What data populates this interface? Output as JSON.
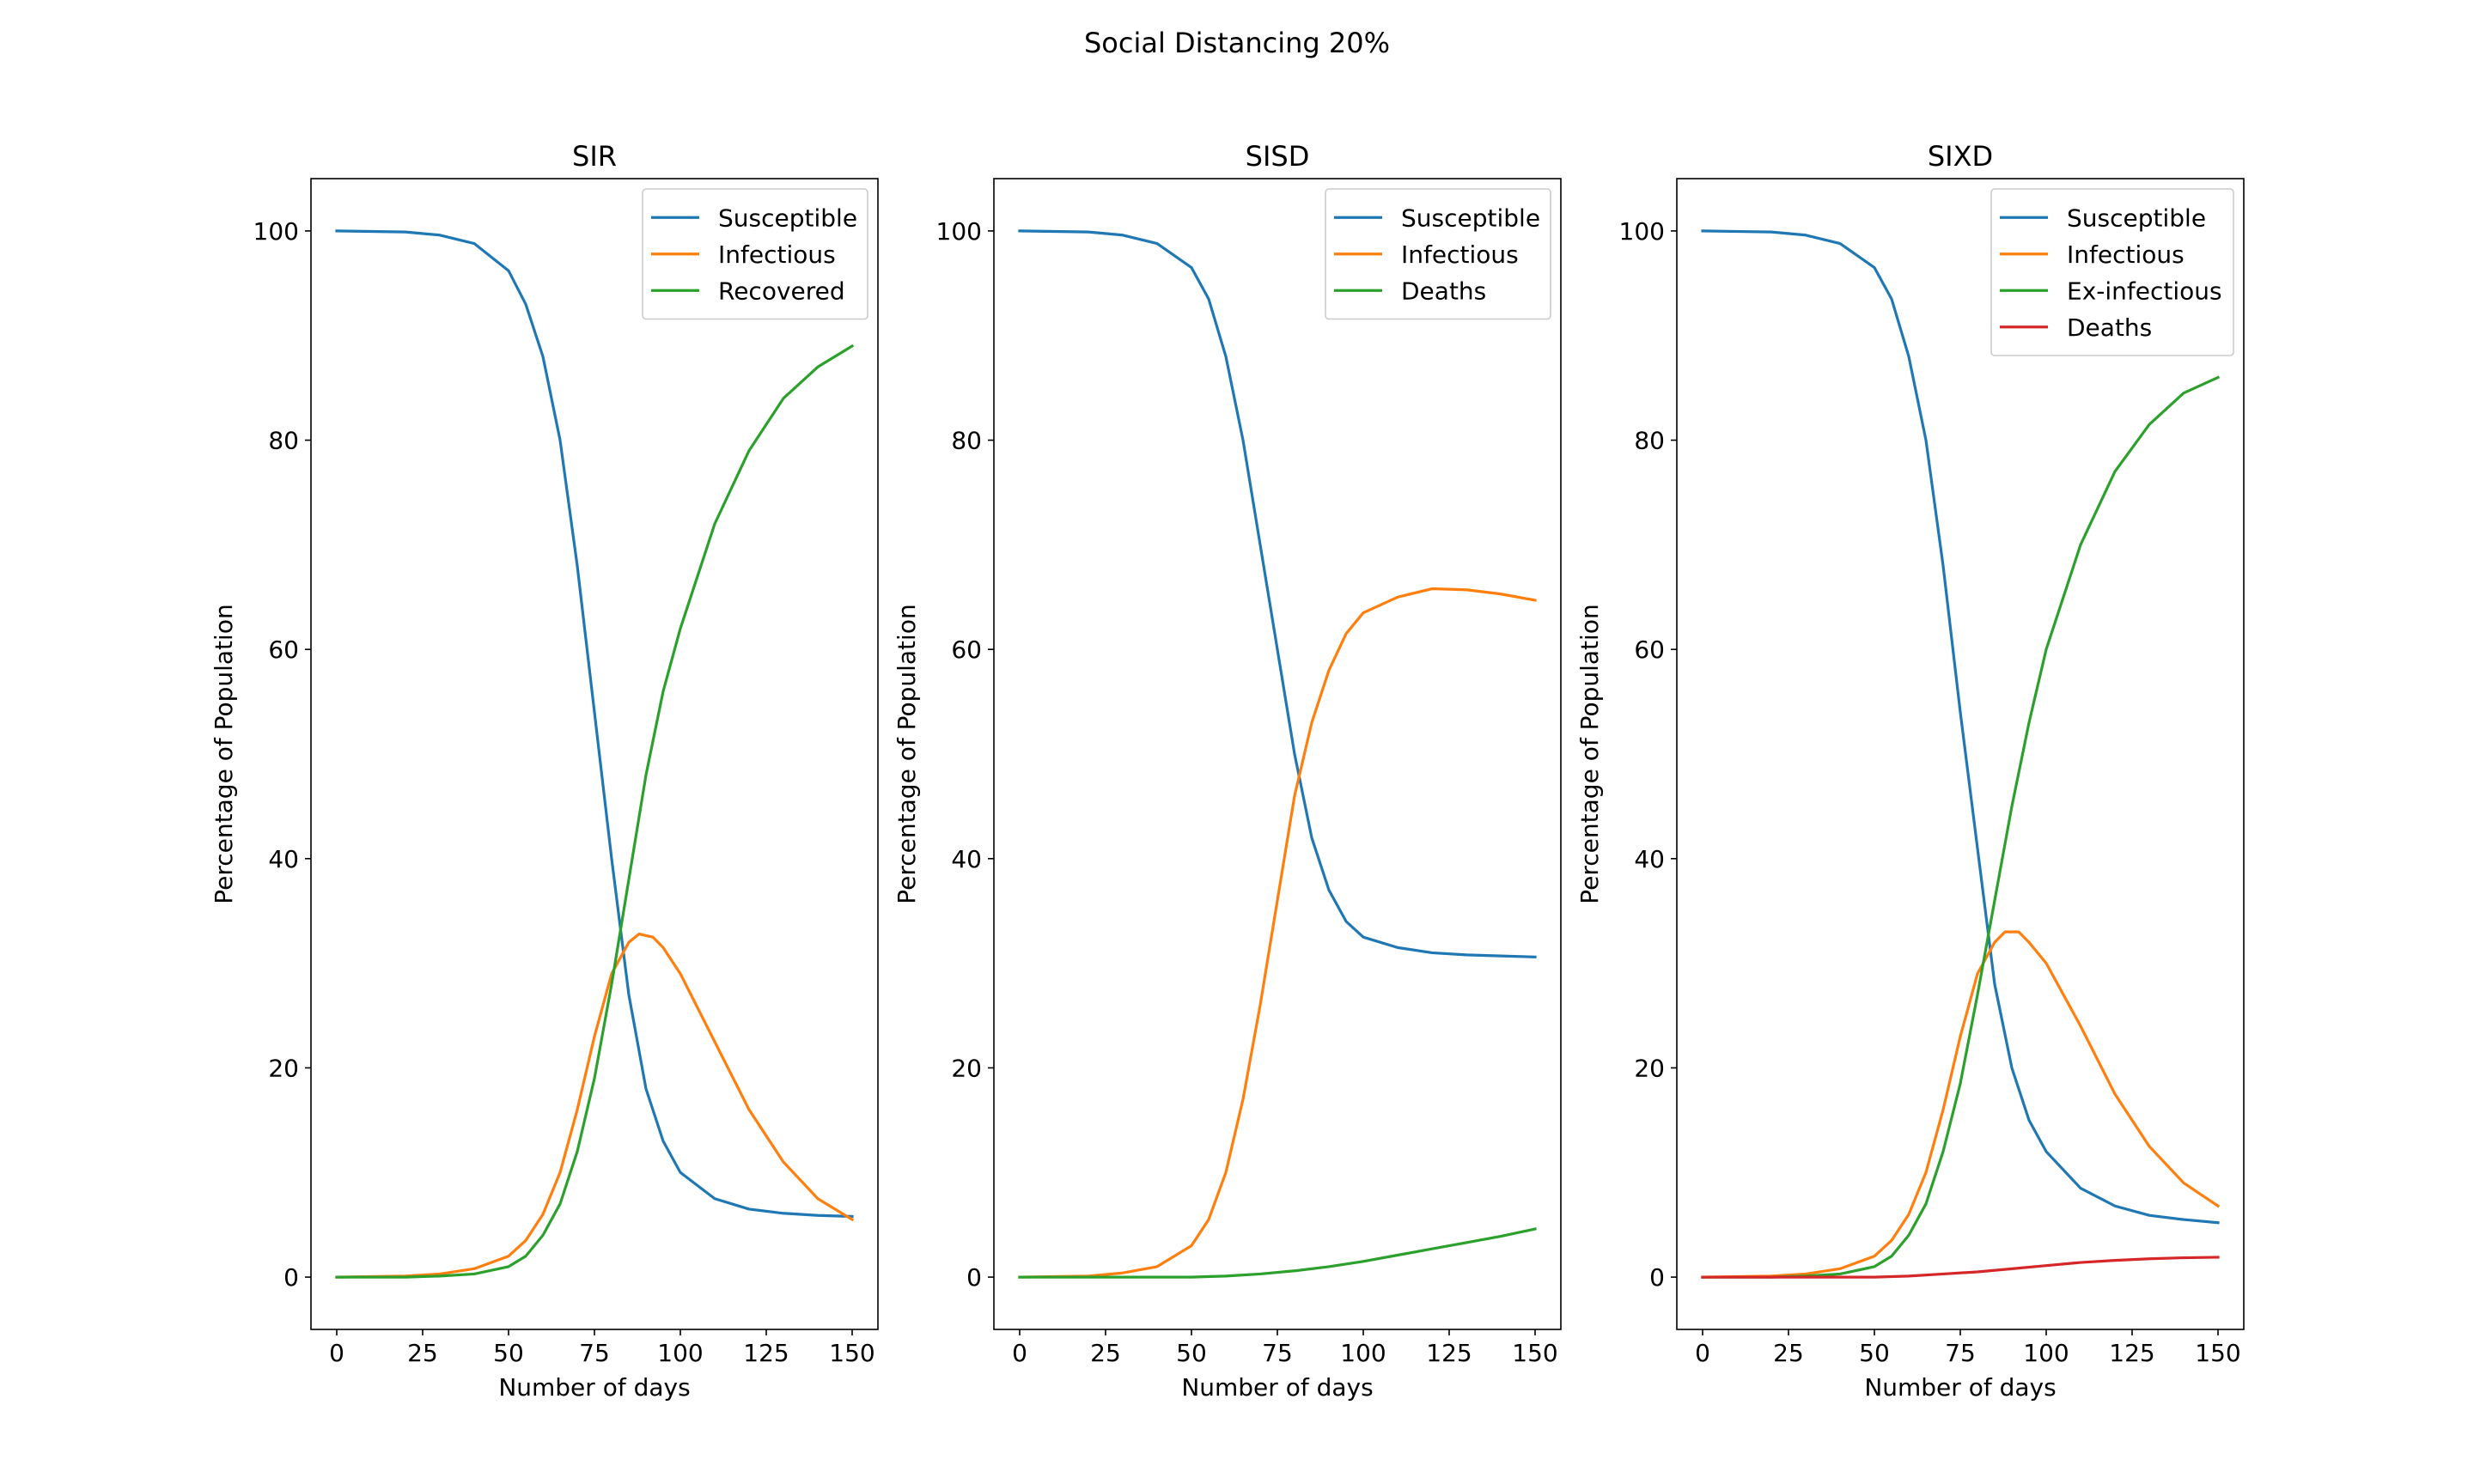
{
  "figure": {
    "title": "Social Distancing 20%"
  },
  "chart_data": [
    {
      "type": "line",
      "title": "SIR",
      "xlabel": "Number of days",
      "ylabel": "Percentage of Population",
      "xlim": [
        -7.5,
        157.5
      ],
      "ylim": [
        -5,
        105
      ],
      "xticks": [
        0,
        25,
        50,
        75,
        100,
        125,
        150
      ],
      "yticks": [
        0,
        20,
        40,
        60,
        80,
        100
      ],
      "grid": false,
      "legend": "top-right",
      "series": [
        {
          "name": "Susceptible",
          "color": "#1f77b4",
          "points": [
            [
              0,
              100
            ],
            [
              20,
              99.9
            ],
            [
              30,
              99.6
            ],
            [
              40,
              98.8
            ],
            [
              50,
              96.2
            ],
            [
              55,
              93
            ],
            [
              60,
              88
            ],
            [
              65,
              80
            ],
            [
              70,
              68
            ],
            [
              75,
              54
            ],
            [
              80,
              40
            ],
            [
              85,
              27
            ],
            [
              90,
              18
            ],
            [
              95,
              13
            ],
            [
              100,
              10
            ],
            [
              110,
              7.5
            ],
            [
              120,
              6.5
            ],
            [
              130,
              6.1
            ],
            [
              140,
              5.9
            ],
            [
              150,
              5.8
            ]
          ]
        },
        {
          "name": "Infectious",
          "color": "#ff7f0e",
          "points": [
            [
              0,
              0
            ],
            [
              20,
              0.1
            ],
            [
              30,
              0.3
            ],
            [
              40,
              0.8
            ],
            [
              50,
              2
            ],
            [
              55,
              3.5
            ],
            [
              60,
              6
            ],
            [
              65,
              10
            ],
            [
              70,
              16
            ],
            [
              75,
              23
            ],
            [
              80,
              29
            ],
            [
              85,
              32
            ],
            [
              88,
              32.8
            ],
            [
              92,
              32.5
            ],
            [
              95,
              31.5
            ],
            [
              100,
              29
            ],
            [
              110,
              22.5
            ],
            [
              120,
              16
            ],
            [
              130,
              11
            ],
            [
              140,
              7.5
            ],
            [
              150,
              5.5
            ]
          ]
        },
        {
          "name": "Recovered",
          "color": "#2ca02c",
          "points": [
            [
              0,
              0
            ],
            [
              20,
              0
            ],
            [
              30,
              0.1
            ],
            [
              40,
              0.3
            ],
            [
              50,
              1
            ],
            [
              55,
              2
            ],
            [
              60,
              4
            ],
            [
              65,
              7
            ],
            [
              70,
              12
            ],
            [
              75,
              19
            ],
            [
              80,
              28
            ],
            [
              85,
              38
            ],
            [
              90,
              48
            ],
            [
              95,
              56
            ],
            [
              100,
              62
            ],
            [
              110,
              72
            ],
            [
              120,
              79
            ],
            [
              130,
              84
            ],
            [
              140,
              87
            ],
            [
              150,
              89
            ]
          ]
        }
      ]
    },
    {
      "type": "line",
      "title": "SISD",
      "xlabel": "Number of days",
      "ylabel": "Percentage of Population",
      "xlim": [
        -7.5,
        157.5
      ],
      "ylim": [
        -5,
        105
      ],
      "xticks": [
        0,
        25,
        50,
        75,
        100,
        125,
        150
      ],
      "yticks": [
        0,
        20,
        40,
        60,
        80,
        100
      ],
      "grid": false,
      "legend": "top-right",
      "series": [
        {
          "name": "Susceptible",
          "color": "#1f77b4",
          "points": [
            [
              0,
              100
            ],
            [
              20,
              99.9
            ],
            [
              30,
              99.6
            ],
            [
              40,
              98.8
            ],
            [
              50,
              96.5
            ],
            [
              55,
              93.5
            ],
            [
              60,
              88
            ],
            [
              65,
              80
            ],
            [
              70,
              70
            ],
            [
              75,
              60
            ],
            [
              80,
              50
            ],
            [
              85,
              42
            ],
            [
              90,
              37
            ],
            [
              95,
              34
            ],
            [
              100,
              32.5
            ],
            [
              110,
              31.5
            ],
            [
              120,
              31
            ],
            [
              130,
              30.8
            ],
            [
              140,
              30.7
            ],
            [
              150,
              30.6
            ]
          ]
        },
        {
          "name": "Infectious",
          "color": "#ff7f0e",
          "points": [
            [
              0,
              0
            ],
            [
              20,
              0.1
            ],
            [
              30,
              0.4
            ],
            [
              40,
              1
            ],
            [
              50,
              3
            ],
            [
              55,
              5.5
            ],
            [
              60,
              10
            ],
            [
              65,
              17
            ],
            [
              70,
              26
            ],
            [
              75,
              36
            ],
            [
              80,
              46
            ],
            [
              85,
              53
            ],
            [
              90,
              58
            ],
            [
              95,
              61.5
            ],
            [
              100,
              63.5
            ],
            [
              110,
              65
            ],
            [
              120,
              65.8
            ],
            [
              130,
              65.7
            ],
            [
              140,
              65.3
            ],
            [
              150,
              64.7
            ]
          ]
        },
        {
          "name": "Deaths",
          "color": "#2ca02c",
          "points": [
            [
              0,
              0
            ],
            [
              40,
              0
            ],
            [
              50,
              0
            ],
            [
              60,
              0.1
            ],
            [
              70,
              0.3
            ],
            [
              80,
              0.6
            ],
            [
              90,
              1
            ],
            [
              100,
              1.5
            ],
            [
              110,
              2.1
            ],
            [
              120,
              2.7
            ],
            [
              130,
              3.3
            ],
            [
              140,
              3.9
            ],
            [
              150,
              4.6
            ]
          ]
        }
      ]
    },
    {
      "type": "line",
      "title": "SIXD",
      "xlabel": "Number of days",
      "ylabel": "Percentage of Population",
      "xlim": [
        -7.5,
        157.5
      ],
      "ylim": [
        -5,
        105
      ],
      "xticks": [
        0,
        25,
        50,
        75,
        100,
        125,
        150
      ],
      "yticks": [
        0,
        20,
        40,
        60,
        80,
        100
      ],
      "grid": false,
      "legend": "top-right",
      "series": [
        {
          "name": "Susceptible",
          "color": "#1f77b4",
          "points": [
            [
              0,
              100
            ],
            [
              20,
              99.9
            ],
            [
              30,
              99.6
            ],
            [
              40,
              98.8
            ],
            [
              50,
              96.5
            ],
            [
              55,
              93.5
            ],
            [
              60,
              88
            ],
            [
              65,
              80
            ],
            [
              70,
              68
            ],
            [
              75,
              54
            ],
            [
              80,
              41
            ],
            [
              85,
              28
            ],
            [
              90,
              20
            ],
            [
              95,
              15
            ],
            [
              100,
              12
            ],
            [
              110,
              8.5
            ],
            [
              120,
              6.8
            ],
            [
              130,
              5.9
            ],
            [
              140,
              5.5
            ],
            [
              150,
              5.2
            ]
          ]
        },
        {
          "name": "Infectious",
          "color": "#ff7f0e",
          "points": [
            [
              0,
              0
            ],
            [
              20,
              0.1
            ],
            [
              30,
              0.3
            ],
            [
              40,
              0.8
            ],
            [
              50,
              2
            ],
            [
              55,
              3.5
            ],
            [
              60,
              6
            ],
            [
              65,
              10
            ],
            [
              70,
              16
            ],
            [
              75,
              23
            ],
            [
              80,
              29
            ],
            [
              85,
              32
            ],
            [
              88,
              33
            ],
            [
              92,
              33
            ],
            [
              95,
              32
            ],
            [
              100,
              30
            ],
            [
              110,
              24
            ],
            [
              120,
              17.5
            ],
            [
              130,
              12.5
            ],
            [
              140,
              9
            ],
            [
              150,
              6.8
            ]
          ]
        },
        {
          "name": "Ex-infectious",
          "color": "#2ca02c",
          "points": [
            [
              0,
              0
            ],
            [
              20,
              0
            ],
            [
              30,
              0.1
            ],
            [
              40,
              0.3
            ],
            [
              50,
              1
            ],
            [
              55,
              2
            ],
            [
              60,
              4
            ],
            [
              65,
              7
            ],
            [
              70,
              12
            ],
            [
              75,
              18.5
            ],
            [
              80,
              27
            ],
            [
              85,
              36
            ],
            [
              90,
              45
            ],
            [
              95,
              53
            ],
            [
              100,
              60
            ],
            [
              110,
              70
            ],
            [
              120,
              77
            ],
            [
              130,
              81.5
            ],
            [
              140,
              84.5
            ],
            [
              150,
              86
            ]
          ]
        },
        {
          "name": "Deaths",
          "color": "#d62728",
          "points": [
            [
              0,
              0
            ],
            [
              40,
              0
            ],
            [
              50,
              0
            ],
            [
              60,
              0.1
            ],
            [
              70,
              0.3
            ],
            [
              80,
              0.5
            ],
            [
              90,
              0.8
            ],
            [
              100,
              1.1
            ],
            [
              110,
              1.4
            ],
            [
              120,
              1.6
            ],
            [
              130,
              1.75
            ],
            [
              140,
              1.85
            ],
            [
              150,
              1.9
            ]
          ]
        }
      ]
    }
  ]
}
